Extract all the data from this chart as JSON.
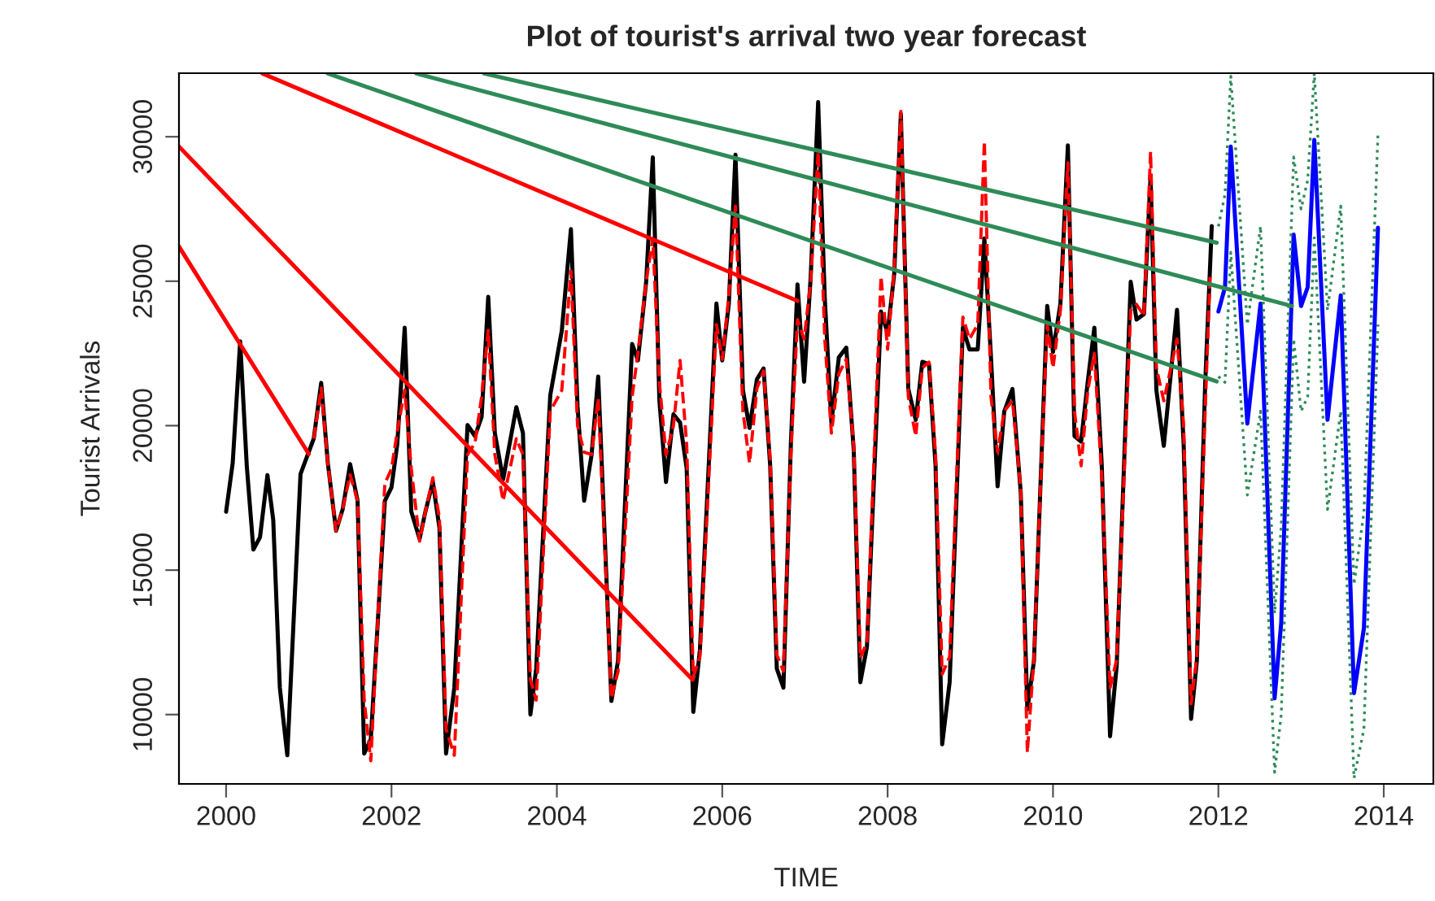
{
  "chart_data": {
    "type": "line",
    "title": "Plot of tourist's arrival two year forecast",
    "xlabel": "TIME",
    "ylabel": "Tourist Arrivals",
    "xlim": [
      1999.43,
      2014.6
    ],
    "ylim": [
      7600,
      32200
    ],
    "xticks": [
      2000,
      2002,
      2004,
      2006,
      2008,
      2010,
      2012,
      2014
    ],
    "yticks": [
      10000,
      15000,
      20000,
      25000,
      30000
    ],
    "grid": false,
    "legend": false,
    "series": [
      {
        "color": "#000000",
        "line_style": "solid",
        "x": [
          2000.0,
          2000.08,
          2000.17,
          2000.25,
          2000.33,
          2000.41,
          2000.5,
          2000.57,
          2000.65,
          2000.74,
          2000.9,
          2001.06,
          2001.15,
          2001.23,
          2001.33,
          2001.41,
          2001.5,
          2001.59,
          2001.67,
          2001.75,
          2001.83,
          2001.92,
          2002.0,
          2002.07,
          2002.16,
          2002.24,
          2002.34,
          2002.41,
          2002.5,
          2002.58,
          2002.66,
          2002.76,
          2002.92,
          2003.01,
          2003.09,
          2003.17,
          2003.25,
          2003.35,
          2003.51,
          2003.59,
          2003.68,
          2003.75,
          2003.92,
          2004.06,
          2004.17,
          2004.25,
          2004.33,
          2004.42,
          2004.5,
          2004.66,
          2004.74,
          2004.91,
          2004.98,
          2005.08,
          2005.16,
          2005.24,
          2005.32,
          2005.41,
          2005.49,
          2005.57,
          2005.65,
          2005.73,
          2005.93,
          2006.0,
          2006.08,
          2006.16,
          2006.25,
          2006.33,
          2006.42,
          2006.5,
          2006.58,
          2006.66,
          2006.74,
          2006.83,
          2006.91,
          2006.99,
          2007.07,
          2007.16,
          2007.24,
          2007.32,
          2007.41,
          2007.5,
          2007.59,
          2007.67,
          2007.75,
          2007.92,
          2008.0,
          2008.08,
          2008.16,
          2008.25,
          2008.34,
          2008.42,
          2008.5,
          2008.58,
          2008.66,
          2008.75,
          2008.91,
          2008.99,
          2009.09,
          2009.17,
          2009.25,
          2009.33,
          2009.41,
          2009.51,
          2009.61,
          2009.69,
          2009.77,
          2009.85,
          2009.93,
          2010.0,
          2010.09,
          2010.18,
          2010.26,
          2010.34,
          2010.42,
          2010.5,
          2010.59,
          2010.69,
          2010.77,
          2010.94,
          2011.01,
          2011.1,
          2011.18,
          2011.25,
          2011.34,
          2011.5,
          2011.58,
          2011.67,
          2011.74,
          2011.84,
          2011.92
        ],
        "values": [
          17020,
          18710,
          22920,
          18610,
          15710,
          16140,
          18290,
          16740,
          10930,
          8590,
          18330,
          19550,
          21480,
          18710,
          16360,
          17110,
          18670,
          17400,
          8650,
          9150,
          12990,
          17400,
          17860,
          19360,
          23390,
          17020,
          16080,
          17020,
          18050,
          16460,
          8650,
          10930,
          20020,
          19640,
          20300,
          24460,
          19740,
          18140,
          20640,
          19740,
          10000,
          11590,
          21050,
          23290,
          26800,
          20670,
          17400,
          18990,
          21700,
          10470,
          11870,
          22830,
          22260,
          24980,
          29290,
          20860,
          18050,
          20390,
          20110,
          18520,
          10090,
          12240,
          24230,
          22260,
          24230,
          29380,
          21230,
          19920,
          21610,
          21980,
          18610,
          11590,
          10930,
          19360,
          24890,
          21520,
          25170,
          31200,
          24420,
          20110,
          22360,
          22700,
          19170,
          11120,
          12340,
          23950,
          23200,
          25260,
          30790,
          21270,
          20200,
          22210,
          22130,
          18610,
          8970,
          11120,
          23390,
          22640,
          22640,
          26480,
          22360,
          17900,
          20490,
          21270,
          17680,
          10180,
          11870,
          18050,
          24140,
          22550,
          24230,
          29700,
          19640,
          19450,
          21520,
          23390,
          18610,
          9250,
          11680,
          24980,
          23670,
          23860,
          28630,
          21230,
          19300,
          24010,
          19360,
          9850,
          11870,
          21420,
          26910
        ]
      },
      {
        "color": "#ff0000",
        "line_style": "dashed",
        "x": [
          2001.06,
          2001.15,
          2001.23,
          2001.33,
          2001.41,
          2001.5,
          2001.59,
          2001.67,
          2001.75,
          2001.83,
          2001.92,
          2002.0,
          2002.07,
          2002.16,
          2002.24,
          2002.34,
          2002.41,
          2002.5,
          2002.58,
          2002.66,
          2002.76,
          2002.92,
          2003.01,
          2003.09,
          2003.17,
          2003.25,
          2003.35,
          2003.51,
          2003.59,
          2003.68,
          2003.75,
          2003.92,
          2004.06,
          2004.17,
          2004.25,
          2004.33,
          2004.42,
          2004.5,
          2004.66,
          2004.74,
          2004.91,
          2004.98,
          2005.08,
          2005.16,
          2005.24,
          2005.32,
          2005.41,
          2005.49,
          2005.57,
          2005.65,
          2005.73,
          2005.93,
          2006.0,
          2006.08,
          2006.16,
          2006.25,
          2006.33,
          2006.42,
          2006.5,
          2006.58,
          2006.66,
          2006.74,
          2006.83,
          2006.91,
          2006.99,
          2007.07,
          2007.16,
          2007.24,
          2007.32,
          2007.41,
          2007.5,
          2007.59,
          2007.67,
          2007.75,
          2007.92,
          2008.0,
          2008.08,
          2008.16,
          2008.25,
          2008.34,
          2008.42,
          2008.5,
          2008.58,
          2008.66,
          2008.75,
          2008.91,
          2008.99,
          2009.09,
          2009.17,
          2009.25,
          2009.33,
          2009.41,
          2009.51,
          2009.61,
          2009.69,
          2009.77,
          2009.85,
          2009.93,
          2010.0,
          2010.09,
          2010.18,
          2010.26,
          2010.34,
          2010.42,
          2010.5,
          2010.59,
          2010.69,
          2010.77,
          2010.94,
          2011.01,
          2011.1,
          2011.18,
          2011.25,
          2011.34,
          2011.5,
          2011.58,
          2011.67,
          2011.74,
          2011.84,
          2011.9
        ],
        "values": [
          19550,
          21300,
          18710,
          16360,
          17110,
          18300,
          17400,
          10500,
          8400,
          12990,
          18000,
          18500,
          19800,
          21230,
          18500,
          16000,
          17020,
          18200,
          16800,
          9500,
          8590,
          19000,
          19400,
          21000,
          23300,
          19000,
          17400,
          19550,
          19000,
          11210,
          10500,
          20500,
          21230,
          25350,
          20000,
          19080,
          19000,
          20950,
          10560,
          11500,
          21000,
          22500,
          25000,
          26480,
          21500,
          18990,
          20000,
          22260,
          19360,
          11310,
          12000,
          23500,
          22300,
          24500,
          27600,
          20500,
          18710,
          21300,
          21900,
          18800,
          12060,
          11500,
          19000,
          23670,
          23000,
          25000,
          29480,
          23000,
          19740,
          21800,
          22300,
          19300,
          11960,
          12500,
          25170,
          22640,
          25500,
          30880,
          21000,
          19640,
          22000,
          22200,
          19000,
          11400,
          12000,
          23760,
          23000,
          23500,
          29850,
          21000,
          19080,
          20500,
          20860,
          17800,
          8690,
          12000,
          18000,
          23500,
          22000,
          24000,
          29100,
          20500,
          18610,
          21200,
          22500,
          18200,
          10930,
          11900,
          24000,
          24200,
          23800,
          29480,
          22000,
          20860,
          23000,
          20000,
          10370,
          12000,
          20500,
          25260
        ]
      },
      {
        "color": "#0000ff",
        "line_style": "solid",
        "x": [
          2012.0,
          2012.08,
          2012.15,
          2012.35,
          2012.51,
          2012.68,
          2012.76,
          2012.91,
          2013.0,
          2013.08,
          2013.16,
          2013.32,
          2013.48,
          2013.64,
          2013.76,
          2013.93
        ],
        "values": [
          23950,
          24790,
          29660,
          20070,
          24230,
          10560,
          13180,
          26610,
          24140,
          24790,
          29890,
          20200,
          24510,
          10740,
          12990,
          26850
        ]
      },
      {
        "color": "#2e8b57",
        "line_style": "dotted",
        "x": [
          2012.0,
          2012.08,
          2012.15,
          2012.35,
          2012.51,
          2012.68,
          2012.76,
          2012.91,
          2013.0,
          2013.08,
          2013.16,
          2013.32,
          2013.48,
          2013.64,
          2013.76,
          2013.93
        ],
        "values": [
          26900,
          28000,
          32100,
          23500,
          26900,
          13500,
          16500,
          29300,
          27500,
          28500,
          32200,
          24000,
          27600,
          14500,
          17000,
          30100
        ]
      },
      {
        "color": "#2e8b57",
        "line_style": "dotted",
        "x": [
          2012.0,
          2012.08,
          2012.15,
          2012.35,
          2012.51,
          2012.68,
          2012.76,
          2012.91,
          2013.0,
          2013.08,
          2013.16,
          2013.32,
          2013.48,
          2013.64,
          2013.76,
          2013.93
        ],
        "values": [
          21700,
          21500,
          26000,
          17600,
          20500,
          8000,
          10000,
          23000,
          20500,
          21000,
          26500,
          17100,
          20500,
          7800,
          9500,
          23500
        ]
      },
      {
        "color": "#ff0000",
        "line_style": "solid",
        "x": [
          1999.43,
          2001.0
        ],
        "values": [
          26200,
          19020
        ]
      },
      {
        "color": "#ff0000",
        "line_style": "solid",
        "x": [
          1999.43,
          2005.64
        ],
        "values": [
          29660,
          11210
        ]
      },
      {
        "color": "#ff0000",
        "line_style": "solid",
        "x": [
          2000.44,
          2006.91
        ],
        "values": [
          32190,
          24320
        ]
      },
      {
        "color": "#2e8b57",
        "line_style": "solid",
        "x": [
          2001.23,
          2011.98
        ],
        "values": [
          32190,
          21530
        ]
      },
      {
        "color": "#2e8b57",
        "line_style": "solid",
        "x": [
          2002.3,
          2012.89
        ],
        "values": [
          32190,
          24140
        ]
      },
      {
        "color": "#2e8b57",
        "line_style": "solid",
        "x": [
          2003.12,
          2011.98
        ],
        "values": [
          32190,
          26330
        ]
      }
    ]
  }
}
